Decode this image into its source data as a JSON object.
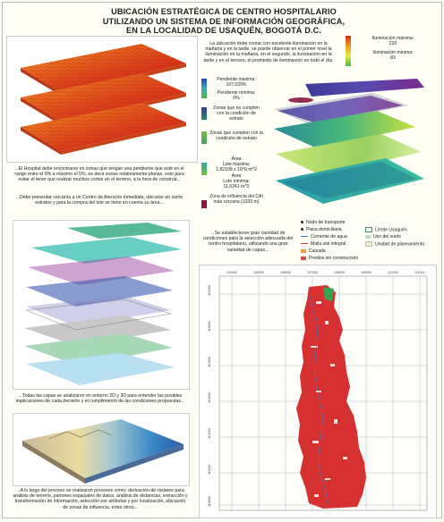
{
  "title": {
    "line1": "UBICACIÓN ESTRATÉGICA DE CENTRO HOSPITALARIO",
    "line2": "UTILIZANDO UN SISTEMA DE INFORMACIÓN GEOGRÁFICA,",
    "line3": "EN LA LOCALIDAD DE USAQUÉN, BOGOTÁ D.C."
  },
  "illumination": {
    "description": "La ubicación debe contar con excelente iluminación en la mañana y en la tarde, se puede observar en el primer nivel la iluminación en la mañana, en el segundo, la iluminación en la tarde y en el tercero, el promedio de iluminación en todo el día.",
    "max_label": "Iluminación máxima:",
    "max_value": "220",
    "min_label": "Iluminación mínima:",
    "min_value": "83",
    "colors": [
      "#d42a1a",
      "#f0a020",
      "#e8e840",
      "#48b848"
    ]
  },
  "slope": {
    "max_label": "Pendiente máxima:",
    "max_value": "107,039%",
    "min_label": "Pendiente mínima:",
    "min_value": "0%",
    "no_meet": "Zonas que no cumplen con la condición de estrato",
    "meet": "Zonas que cumplen con la condición de estrato",
    "area_label": "Área",
    "lot_max_label": "Lote máxima:",
    "lot_max_value": "1,82109 x 10^6 m^2",
    "area_label2": "Área",
    "lot_min_label": "Lote mínima:",
    "lot_min_value": "11,6241 m^2",
    "influence": "Zona de influencia del CAI más cercano (1333 m)",
    "description": "...El Hospital debe encontrarse en zonas que tengan una pendiente que esté en el rango entre el 0% a máximo el 5%, es decir zonas relativamente planas, esto para evitar el tener que realizar muchos cortes en el terreno, a la hora de construir...",
    "description2": "...Debe presentar cercanía a un Centro de Atención Inmediata, ubicarse en cierto estratos y para la compra del lote se tiene en cuenta su área..."
  },
  "layers": {
    "description": "...Se establecieron gran cantidad de condiciones para la selección adecuada del centro hospitalario, utilizando una gran variedad de capas...",
    "description2": "...Todas las capas se analizaron en entorno 2D y 3D para entender las posibles implicaciones de cada decisión y el cumplimiento de las condiciones propuestas...",
    "description3": "...A lo largo del proceso se realizaron procesos como: derivación de ráslares para análisis de terreno, patrones espaciales de datos, análisis de distancias, extracción y transformación de información, selección por atributos y por localización, ubicación de zonas de influencia, entre otros..."
  },
  "map_legend": {
    "items": [
      {
        "label": "Nodo de transporte"
      },
      {
        "label": "Placa domiciliaria"
      },
      {
        "label": "Corriente de agua"
      },
      {
        "label": "Malla vial integral"
      },
      {
        "label": "Calzada"
      },
      {
        "label": "Predios sin construcción"
      }
    ],
    "items_right": [
      {
        "label": "Límite Usaquén"
      },
      {
        "label": "Uso del suelo"
      },
      {
        "label": "Unidad de planeamiento"
      }
    ]
  },
  "grid": {
    "x_ticks": [
      "104000",
      "105000",
      "106000",
      "107000",
      "108000",
      "109000",
      "110000",
      "111000"
    ],
    "y_ticks": [
      "116000",
      "115000",
      "114000",
      "113000",
      "112000",
      "111000",
      "110000"
    ]
  }
}
